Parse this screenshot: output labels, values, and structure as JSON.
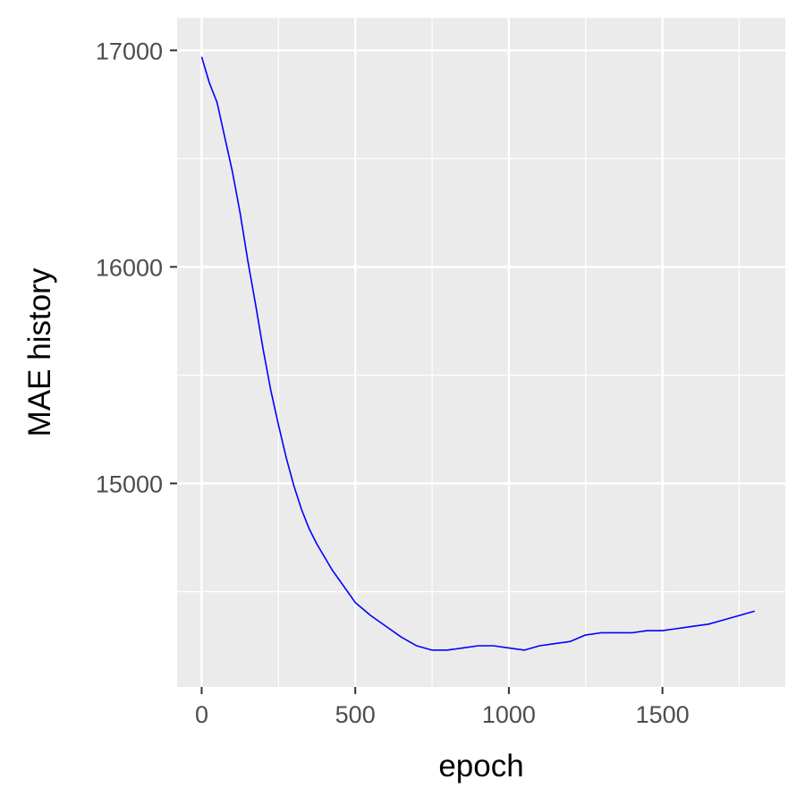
{
  "colors": {
    "panel_background": "#ebebeb",
    "grid": "#ffffff",
    "line": "#0000ff",
    "tick_text": "#4d4d4d",
    "tick_mark": "#333333"
  },
  "chart_data": {
    "type": "line",
    "xlabel": "epoch",
    "ylabel": "MAE history",
    "xlim": [
      -80,
      1900
    ],
    "ylim": [
      14060,
      17150
    ],
    "x_ticks": [
      0,
      500,
      1000,
      1500
    ],
    "y_ticks": [
      15000,
      16000,
      17000
    ],
    "x_tick_labels": [
      "0",
      "500",
      "1000",
      "1500"
    ],
    "y_tick_labels": [
      "15000",
      "16000",
      "17000"
    ],
    "grid": true,
    "legend": "none",
    "series": [
      {
        "x": [
          0,
          25,
          50,
          75,
          100,
          125,
          150,
          175,
          200,
          225,
          250,
          275,
          300,
          325,
          350,
          375,
          400,
          425,
          450,
          475,
          500,
          550,
          600,
          650,
          700,
          750,
          800,
          850,
          900,
          950,
          1000,
          1050,
          1100,
          1150,
          1200,
          1250,
          1300,
          1350,
          1400,
          1450,
          1500,
          1550,
          1600,
          1650,
          1700,
          1750,
          1800
        ],
        "values": [
          16970,
          16850,
          16760,
          16600,
          16440,
          16250,
          16030,
          15830,
          15620,
          15430,
          15270,
          15120,
          14990,
          14880,
          14790,
          14720,
          14660,
          14600,
          14550,
          14500,
          14450,
          14390,
          14340,
          14290,
          14250,
          14230,
          14230,
          14240,
          14250,
          14250,
          14240,
          14230,
          14250,
          14260,
          14270,
          14300,
          14310,
          14310,
          14310,
          14320,
          14320,
          14330,
          14340,
          14350,
          14370,
          14390,
          14410
        ]
      }
    ]
  }
}
